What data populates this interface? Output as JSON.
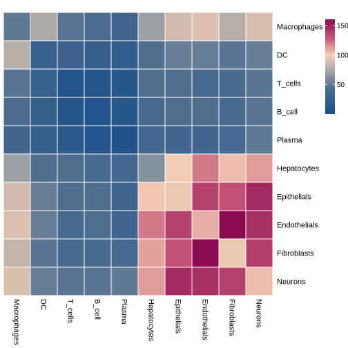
{
  "chart_data": {
    "type": "heatmap",
    "rows": [
      "Macrophages",
      "DC",
      "T_cells",
      "B_cell",
      "Plasma",
      "Hepatocytes",
      "Epithelials",
      "Endothelials",
      "Fibroblasts",
      "Neurons"
    ],
    "columns": [
      "Macrophages",
      "DC",
      "T_cells",
      "B_cell",
      "Plasma",
      "Hepatocytes",
      "Epithelials",
      "Endothelials",
      "Fibroblasts",
      "Neurons"
    ],
    "values": [
      [
        35,
        58,
        33,
        28,
        22,
        52,
        77,
        82,
        62,
        80
      ],
      [
        63,
        18,
        20,
        15,
        14,
        30,
        37,
        37,
        33,
        37
      ],
      [
        33,
        18,
        5,
        6,
        8,
        30,
        30,
        26,
        26,
        33
      ],
      [
        28,
        16,
        7,
        5,
        8,
        26,
        30,
        30,
        26,
        33
      ],
      [
        22,
        15,
        9,
        5,
        4,
        23,
        22,
        22,
        25,
        35
      ],
      [
        52,
        30,
        30,
        26,
        23,
        45,
        95,
        120,
        100,
        110
      ],
      [
        77,
        37,
        30,
        30,
        22,
        97,
        90,
        140,
        133,
        150
      ],
      [
        82,
        37,
        26,
        30,
        22,
        120,
        140,
        105,
        165,
        148
      ],
      [
        70,
        33,
        26,
        26,
        25,
        108,
        133,
        165,
        90,
        142
      ],
      [
        80,
        37,
        33,
        33,
        35,
        110,
        150,
        148,
        140,
        100
      ]
    ],
    "colorbar": {
      "ticks": [
        50,
        100,
        150
      ],
      "range": [
        0,
        160
      ]
    },
    "colors": {
      "low": "#1a4e8a",
      "mid": "#a6a6a6",
      "highmid": "#f5cdb4",
      "high": "#8b0a50",
      "grid": "#ffffff"
    }
  }
}
